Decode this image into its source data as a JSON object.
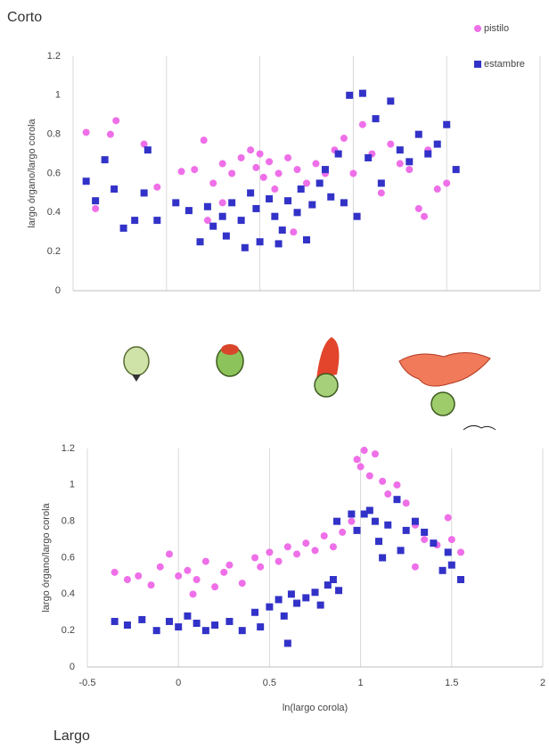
{
  "chart_data": [
    {
      "type": "scatter",
      "title": "Corto",
      "ylabel": "largo órgano/largo corola",
      "xlim": [
        -0.5,
        2
      ],
      "xticks": [
        -0.5,
        0,
        0.5,
        1,
        1.5,
        2
      ],
      "show_xtick_labels": false,
      "ylim": [
        0,
        1.2
      ],
      "yticks": [
        0,
        0.2,
        0.4,
        0.6,
        0.8,
        1,
        1.2
      ],
      "grid": "x",
      "legend": "upper right",
      "series": [
        {
          "name": "pistilo",
          "color": "#ee6fe8",
          "marker": "circle",
          "x": [
            -0.43,
            -0.3,
            -0.27,
            -0.38,
            -0.12,
            -0.05,
            0.08,
            0.15,
            0.2,
            0.25,
            0.3,
            0.35,
            0.4,
            0.45,
            0.48,
            0.5,
            0.52,
            0.55,
            0.58,
            0.6,
            0.65,
            0.7,
            0.75,
            0.8,
            0.85,
            0.9,
            0.95,
            1.0,
            1.05,
            1.1,
            1.15,
            1.2,
            1.25,
            1.3,
            1.35,
            1.38,
            1.4,
            1.45,
            1.5,
            0.3,
            0.68,
            0.22
          ],
          "values": [
            0.81,
            0.8,
            0.87,
            0.42,
            0.75,
            0.53,
            0.61,
            0.62,
            0.77,
            0.55,
            0.65,
            0.6,
            0.68,
            0.72,
            0.63,
            0.7,
            0.58,
            0.66,
            0.52,
            0.6,
            0.68,
            0.62,
            0.55,
            0.65,
            0.6,
            0.72,
            0.78,
            0.6,
            0.85,
            0.7,
            0.5,
            0.75,
            0.65,
            0.62,
            0.42,
            0.38,
            0.72,
            0.52,
            0.55,
            0.45,
            0.3,
            0.36
          ]
        },
        {
          "name": "estambre",
          "color": "#3232c8",
          "marker": "square",
          "x": [
            -0.43,
            -0.38,
            -0.33,
            -0.28,
            -0.23,
            -0.17,
            -0.12,
            -0.1,
            -0.05,
            0.05,
            0.12,
            0.18,
            0.22,
            0.25,
            0.3,
            0.32,
            0.35,
            0.4,
            0.45,
            0.48,
            0.5,
            0.55,
            0.58,
            0.62,
            0.65,
            0.7,
            0.72,
            0.75,
            0.78,
            0.82,
            0.85,
            0.88,
            0.92,
            0.95,
            0.98,
            1.05,
            1.08,
            1.12,
            1.15,
            1.2,
            1.25,
            1.3,
            1.35,
            1.4,
            1.45,
            1.5,
            1.55,
            1.02,
            0.42,
            0.6
          ],
          "values": [
            0.56,
            0.46,
            0.67,
            0.52,
            0.32,
            0.36,
            0.5,
            0.72,
            0.36,
            0.45,
            0.41,
            0.25,
            0.43,
            0.33,
            0.38,
            0.28,
            0.45,
            0.36,
            0.5,
            0.42,
            0.25,
            0.47,
            0.38,
            0.31,
            0.46,
            0.4,
            0.52,
            0.26,
            0.44,
            0.55,
            0.62,
            0.48,
            0.7,
            0.45,
            1.0,
            1.01,
            0.68,
            0.88,
            0.55,
            0.97,
            0.72,
            0.66,
            0.8,
            0.7,
            0.75,
            0.85,
            0.62,
            0.38,
            0.22,
            0.24
          ]
        }
      ]
    },
    {
      "type": "scatter",
      "title": "Largo",
      "ylabel": "largo órgano/largo corola",
      "xlabel": "ln(largo corola)",
      "xlim": [
        -0.5,
        2
      ],
      "xticks": [
        -0.5,
        0,
        0.5,
        1,
        1.5,
        2
      ],
      "show_xtick_labels": true,
      "ylim": [
        0,
        1.2
      ],
      "yticks": [
        0,
        0.2,
        0.4,
        0.6,
        0.8,
        1,
        1.2
      ],
      "grid": "x",
      "series": [
        {
          "color": "#ee6fe8",
          "marker": "circle",
          "x": [
            -0.35,
            -0.28,
            -0.22,
            -0.15,
            -0.1,
            -0.05,
            0,
            0.05,
            0.1,
            0.15,
            0.2,
            0.25,
            0.28,
            0.35,
            0.42,
            0.45,
            0.5,
            0.55,
            0.6,
            0.65,
            0.7,
            0.75,
            0.8,
            0.85,
            0.9,
            0.95,
            0.98,
            1.0,
            1.02,
            1.05,
            1.08,
            1.12,
            1.15,
            1.2,
            1.25,
            1.3,
            1.35,
            1.42,
            1.48,
            1.5,
            1.55,
            0.08,
            1.3
          ],
          "values": [
            0.52,
            0.48,
            0.5,
            0.45,
            0.55,
            0.62,
            0.5,
            0.53,
            0.48,
            0.58,
            0.44,
            0.52,
            0.56,
            0.46,
            0.6,
            0.55,
            0.63,
            0.58,
            0.66,
            0.62,
            0.68,
            0.64,
            0.72,
            0.66,
            0.74,
            0.8,
            1.14,
            1.1,
            1.19,
            1.05,
            1.17,
            1.02,
            0.95,
            1.0,
            0.9,
            0.78,
            0.7,
            0.67,
            0.82,
            0.7,
            0.63,
            0.4,
            0.55
          ]
        },
        {
          "color": "#3232c8",
          "marker": "square",
          "x": [
            -0.35,
            -0.28,
            -0.2,
            -0.12,
            -0.05,
            0,
            0.05,
            0.1,
            0.15,
            0.2,
            0.28,
            0.35,
            0.42,
            0.45,
            0.5,
            0.55,
            0.58,
            0.6,
            0.62,
            0.65,
            0.7,
            0.75,
            0.78,
            0.82,
            0.85,
            0.87,
            0.88,
            0.95,
            0.98,
            1.02,
            1.05,
            1.08,
            1.1,
            1.15,
            1.2,
            1.22,
            1.25,
            1.3,
            1.35,
            1.4,
            1.45,
            1.5,
            1.55,
            1.48,
            1.12
          ],
          "values": [
            0.25,
            0.23,
            0.26,
            0.2,
            0.25,
            0.22,
            0.28,
            0.24,
            0.2,
            0.23,
            0.25,
            0.2,
            0.3,
            0.22,
            0.33,
            0.37,
            0.28,
            0.13,
            0.4,
            0.35,
            0.38,
            0.41,
            0.34,
            0.45,
            0.48,
            0.8,
            0.42,
            0.84,
            0.75,
            0.84,
            0.86,
            0.8,
            0.69,
            0.78,
            0.92,
            0.64,
            0.75,
            0.8,
            0.74,
            0.68,
            0.53,
            0.56,
            0.48,
            0.63,
            0.6
          ]
        }
      ]
    }
  ]
}
